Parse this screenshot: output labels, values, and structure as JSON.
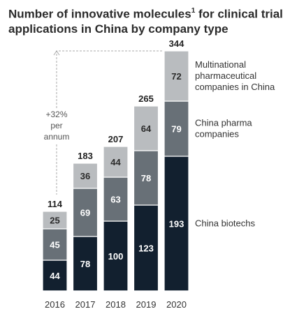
{
  "title_main": "Number of innovative molecules",
  "title_sup": "1",
  "title_rest": " for clinical trial applications in China by company type",
  "colors": {
    "China biotechs": "#12202f",
    "China pharma companies": "#687077",
    "Multinational pharmaceutical companies in China": "#b9bcbf"
  },
  "chart_data": {
    "type": "bar",
    "stacked": true,
    "categories": [
      "2016",
      "2017",
      "2018",
      "2019",
      "2020"
    ],
    "series": [
      {
        "name": "China biotechs",
        "values": [
          44,
          78,
          100,
          123,
          193
        ]
      },
      {
        "name": "China pharma companies",
        "values": [
          45,
          69,
          63,
          78,
          79
        ]
      },
      {
        "name": "Multinational pharmaceutical companies in China",
        "values": [
          25,
          36,
          44,
          64,
          72
        ]
      }
    ],
    "totals": [
      114,
      183,
      207,
      265,
      344
    ],
    "legend_lines": [
      [
        "China biotechs"
      ],
      [
        "China pharma",
        "companies"
      ],
      [
        "Multinational",
        "pharmaceutical",
        "companies in China"
      ]
    ],
    "annotation": {
      "lines": [
        "+32%",
        "per",
        "annum"
      ]
    },
    "legend_placement": "right",
    "grid": false
  }
}
